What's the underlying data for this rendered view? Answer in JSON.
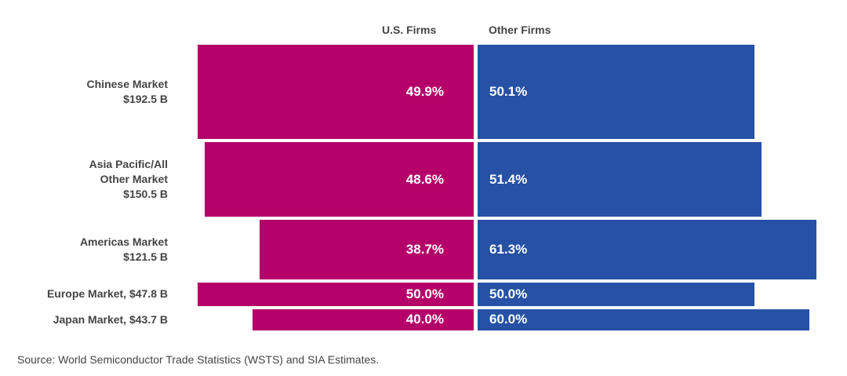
{
  "chart_data": {
    "type": "bar",
    "subtype": "variable-width diverging (marimekko) bar",
    "series": [
      {
        "name": "U.S. Firms",
        "color": "#b40068",
        "values": [
          49.9,
          48.6,
          38.7,
          50.0,
          40.0
        ],
        "labels": [
          "49.9%",
          "48.6%",
          "38.7%",
          "50.0%",
          "40.0%"
        ]
      },
      {
        "name": "Other Firms",
        "color": "#2651a4",
        "values": [
          50.1,
          51.4,
          61.3,
          50.0,
          60.0
        ],
        "labels": [
          "50.1%",
          "51.4%",
          "61.3%",
          "50.0%",
          "60.0%"
        ]
      }
    ],
    "categories": [
      {
        "label": "Chinese Market\n$192.5 B",
        "market_size_billion": 192.5
      },
      {
        "label": "Asia Pacific/All\nOther Market\n$150.5 B",
        "market_size_billion": 150.5
      },
      {
        "label": "Americas Market\n$121.5 B",
        "market_size_billion": 121.5
      },
      {
        "label": "Europe Market, $47.8 B",
        "market_size_billion": 47.8
      },
      {
        "label": "Japan Market, $43.7 B",
        "market_size_billion": 43.7
      }
    ],
    "unit": "%",
    "xlim": [
      0,
      100
    ]
  },
  "source": "Source: World Semiconductor Trade Statistics (WSTS) and SIA Estimates."
}
